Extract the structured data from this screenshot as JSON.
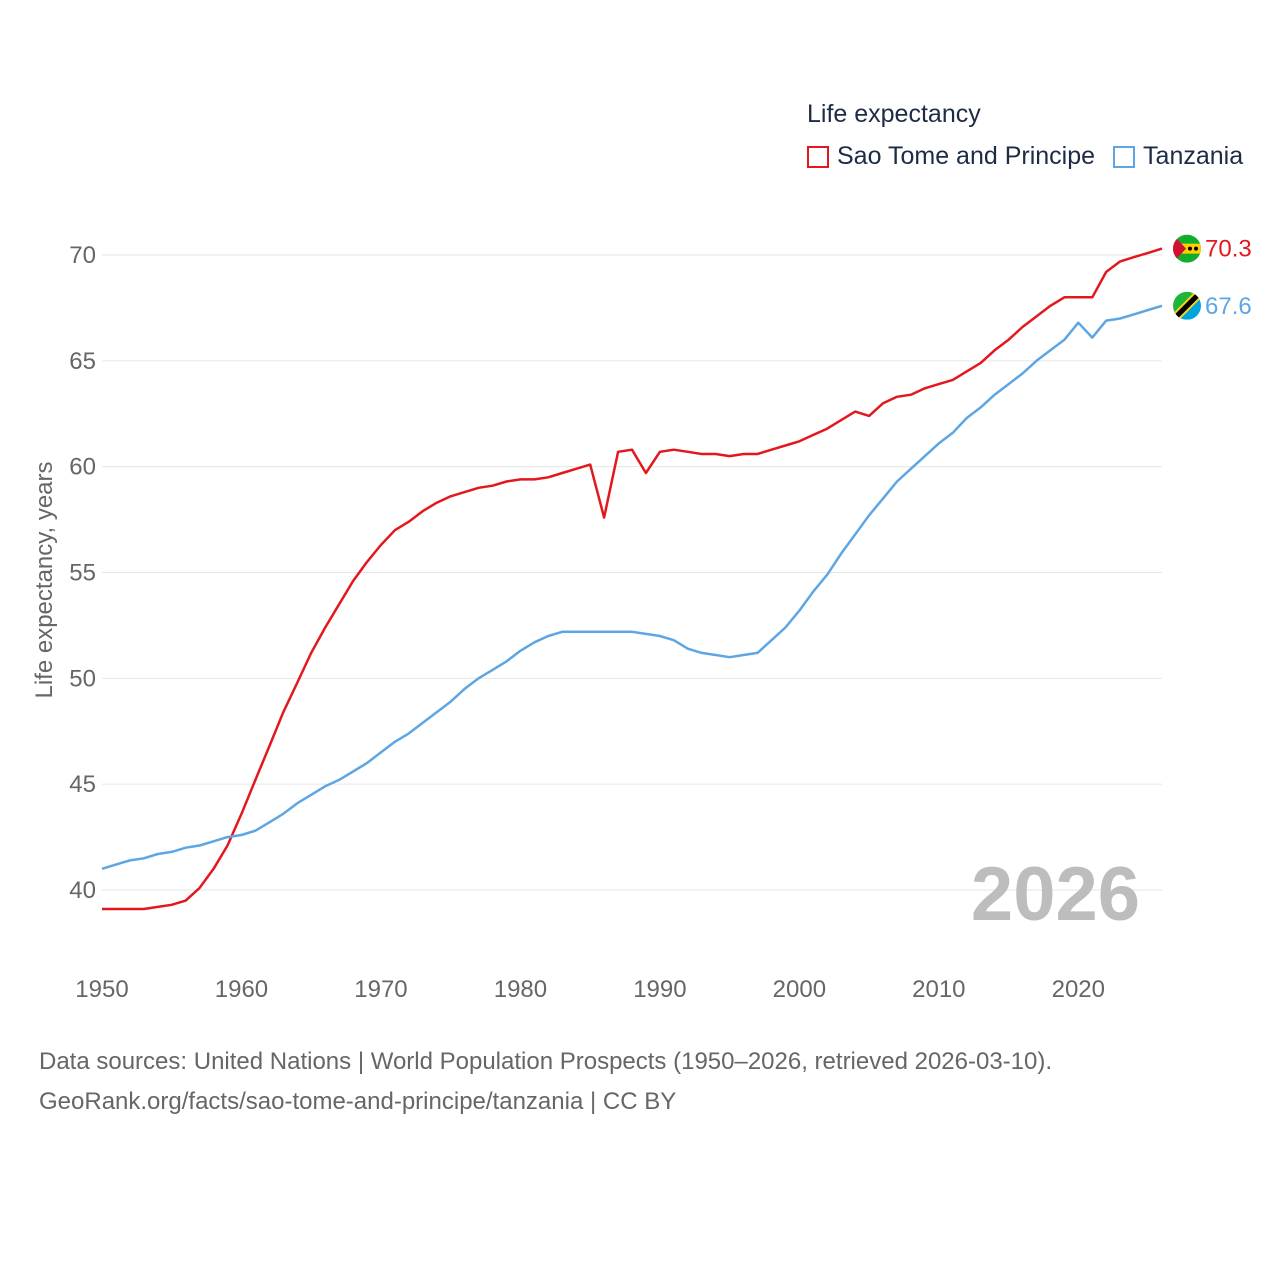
{
  "legend": {
    "title": "Life expectancy",
    "items": [
      {
        "label": "Sao Tome and Principe",
        "color": "#e3181e"
      },
      {
        "label": "Tanzania",
        "color": "#5ea6e3"
      }
    ]
  },
  "watermark_year": "2026",
  "source": {
    "line1": "Data sources: United Nations | World Population Prospects (1950–2026, retrieved 2026-03-10).",
    "line2": "GeoRank.org/facts/sao-tome-and-principe/tanzania | CC BY"
  },
  "chart_data": {
    "type": "line",
    "title": "Life expectancy",
    "xlabel": "",
    "ylabel": "Life expectancy, years",
    "xlim": [
      1950,
      2026
    ],
    "ylim": [
      37,
      72.5
    ],
    "x_ticks": [
      1950,
      1960,
      1970,
      1980,
      1990,
      2000,
      2010,
      2020
    ],
    "y_ticks": [
      40,
      45,
      50,
      55,
      60,
      65,
      70
    ],
    "grid": true,
    "legend_position": "top-right",
    "x": [
      1950,
      1951,
      1952,
      1953,
      1954,
      1955,
      1956,
      1957,
      1958,
      1959,
      1960,
      1961,
      1962,
      1963,
      1964,
      1965,
      1966,
      1967,
      1968,
      1969,
      1970,
      1971,
      1972,
      1973,
      1974,
      1975,
      1976,
      1977,
      1978,
      1979,
      1980,
      1981,
      1982,
      1983,
      1984,
      1985,
      1986,
      1987,
      1988,
      1989,
      1990,
      1991,
      1992,
      1993,
      1994,
      1995,
      1996,
      1997,
      1998,
      1999,
      2000,
      2001,
      2002,
      2003,
      2004,
      2005,
      2006,
      2007,
      2008,
      2009,
      2010,
      2011,
      2012,
      2013,
      2014,
      2015,
      2016,
      2017,
      2018,
      2019,
      2020,
      2021,
      2022,
      2023,
      2024,
      2025,
      2026
    ],
    "series": [
      {
        "name": "Sao Tome and Principe",
        "color": "#e3181e",
        "end_label": "70.3",
        "values": [
          39.1,
          39.1,
          39.1,
          39.1,
          39.2,
          39.3,
          39.5,
          40.1,
          41.0,
          42.1,
          43.6,
          45.2,
          46.8,
          48.4,
          49.8,
          51.2,
          52.4,
          53.5,
          54.6,
          55.5,
          56.3,
          57.0,
          57.4,
          57.9,
          58.3,
          58.6,
          58.8,
          59.0,
          59.1,
          59.3,
          59.4,
          59.4,
          59.5,
          59.7,
          59.9,
          60.1,
          57.6,
          60.7,
          60.8,
          59.7,
          60.7,
          60.8,
          60.7,
          60.6,
          60.6,
          60.5,
          60.6,
          60.6,
          60.8,
          61.0,
          61.2,
          61.5,
          61.8,
          62.2,
          62.6,
          62.4,
          63.0,
          63.3,
          63.4,
          63.7,
          63.9,
          64.1,
          64.5,
          64.9,
          65.5,
          66.0,
          66.6,
          67.1,
          67.6,
          68.0,
          68.0,
          68.0,
          69.2,
          69.7,
          69.9,
          70.1,
          70.3
        ]
      },
      {
        "name": "Tanzania",
        "color": "#5ea6e3",
        "end_label": "67.6",
        "values": [
          41.0,
          41.2,
          41.4,
          41.5,
          41.7,
          41.8,
          42.0,
          42.1,
          42.3,
          42.5,
          42.6,
          42.8,
          43.2,
          43.6,
          44.1,
          44.5,
          44.9,
          45.2,
          45.6,
          46.0,
          46.5,
          47.0,
          47.4,
          47.9,
          48.4,
          48.9,
          49.5,
          50.0,
          50.4,
          50.8,
          51.3,
          51.7,
          52.0,
          52.2,
          52.2,
          52.2,
          52.2,
          52.2,
          52.2,
          52.1,
          52.0,
          51.8,
          51.4,
          51.2,
          51.1,
          51.0,
          51.1,
          51.2,
          51.8,
          52.4,
          53.2,
          54.1,
          54.9,
          55.9,
          56.8,
          57.7,
          58.5,
          59.3,
          59.9,
          60.5,
          61.1,
          61.6,
          62.3,
          62.8,
          63.4,
          63.9,
          64.4,
          65.0,
          65.5,
          66.0,
          66.8,
          66.1,
          66.9,
          67.0,
          67.2,
          67.4,
          67.6
        ]
      }
    ]
  }
}
